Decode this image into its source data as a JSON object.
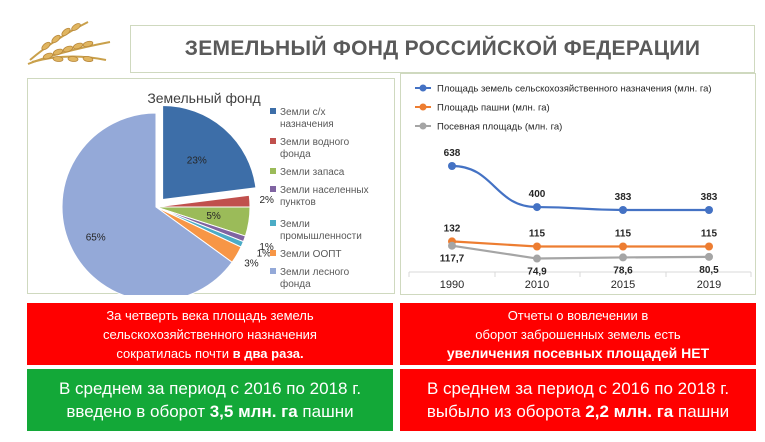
{
  "header": {
    "title": "ЗЕМЕЛЬНЫЙ ФОНД РОССИЙСКОЙ ФЕДЕРАЦИИ"
  },
  "chart_data": [
    {
      "type": "pie",
      "title": "Земельный фонд",
      "categories": [
        "Земли с/х назначения",
        "Земли водного фонда",
        "Земли запаса",
        "Земли населенных пунктов",
        "Земли промышленности",
        "Земли ООПТ",
        "Земли лесного фонда"
      ],
      "values": [
        23,
        2,
        5,
        1,
        1,
        3,
        65
      ],
      "labels": [
        "23%",
        "2%",
        "5%",
        "1%",
        "1%",
        "3%",
        "65%"
      ],
      "colors": [
        "#3d6ea8",
        "#c0504d",
        "#9bbb59",
        "#8064a2",
        "#4bacc6",
        "#f79646",
        "#94a9d8"
      ],
      "legend_lines": [
        [
          "Земли с/х",
          "назначения"
        ],
        [
          "Земли водного",
          "фонда"
        ],
        [
          "Земли запаса"
        ],
        [
          "Земли населенных",
          "пунктов"
        ],
        [
          "Земли",
          "промышленности"
        ],
        [
          "Земли ООПТ"
        ],
        [
          "Земли лесного",
          "фонда"
        ]
      ],
      "legend_position": "right"
    },
    {
      "type": "line",
      "categories": [
        "1990",
        "2010",
        "2015",
        "2019"
      ],
      "series": [
        {
          "name": "Площадь земель сельскохозяйственного назначения (млн. га)",
          "values": [
            638,
            400,
            383,
            383
          ],
          "labels": [
            "638",
            "400",
            "383",
            "383"
          ],
          "color": "#4472c4"
        },
        {
          "name": "Площадь пашни (млн. га)",
          "values": [
            132,
            115,
            115,
            115
          ],
          "labels": [
            "132",
            "115",
            "115",
            "115"
          ],
          "color": "#ed7d31"
        },
        {
          "name": "Посевная площадь (млн. га)",
          "values": [
            117.7,
            74.9,
            78.6,
            80.5
          ],
          "labels": [
            "117,7",
            "74,9",
            "78,6",
            "80,5"
          ],
          "color": "#a5a5a5"
        }
      ],
      "legend_position": "top"
    }
  ],
  "boxes": {
    "left_red": {
      "line1": "За четверть века площадь земель",
      "line2": "сельскохозяйственного  назначения",
      "line3_pre": "сократилась почти ",
      "line3_bold": "в два раза."
    },
    "right_red": {
      "line1": "Отчеты о вовлечении в",
      "line2": "оборот заброшенных земель есть",
      "line3_bold": "увеличения посевных площадей НЕТ"
    },
    "left_green": {
      "line1": "В среднем за период с 2016 по 2018 г.",
      "line2_pre": "введено в оборот ",
      "line2_bold": "3,5 млн. га",
      "line2_post": " пашни"
    },
    "right_red2": {
      "line1": "В среднем за период с 2016 по 2018 г.",
      "line2_pre": "выбыло из оборота ",
      "line2_bold": "2,2 млн. га",
      "line2_post": " пашни"
    }
  }
}
